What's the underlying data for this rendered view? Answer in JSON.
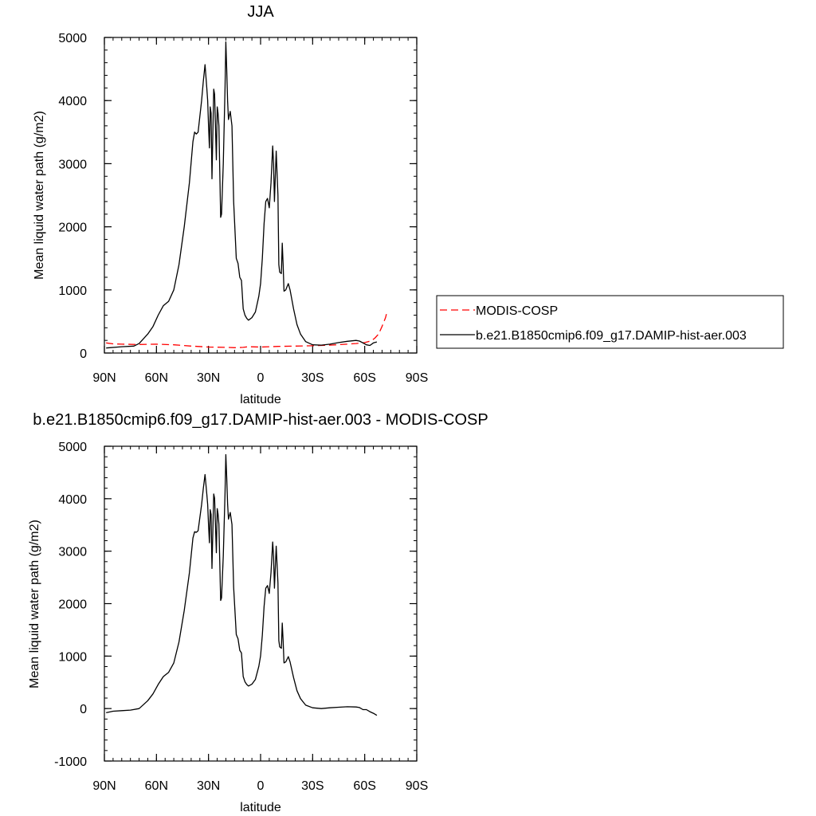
{
  "chart_data": [
    {
      "type": "line",
      "title": "JJA",
      "xlabel": "latitude",
      "ylabel": "Mean liquid water path (g/m2)",
      "xlim": [
        90,
        -90
      ],
      "ylim": [
        0,
        5000
      ],
      "xticks": [
        90,
        60,
        30,
        0,
        -30,
        -60,
        -90
      ],
      "xticklabels": [
        "90N",
        "60N",
        "30N",
        "0",
        "30S",
        "60S",
        "90S"
      ],
      "yticks": [
        0,
        1000,
        2000,
        3000,
        4000,
        5000
      ],
      "yticklabels": [
        "0",
        "1000",
        "2000",
        "3000",
        "4000",
        "5000"
      ],
      "grid": false,
      "legend_position": "right",
      "series": [
        {
          "name": "MODIS-COSP",
          "color": "#ff0000",
          "dash": "dashed",
          "points": [
            [
              89,
              160
            ],
            [
              85,
              145
            ],
            [
              80,
              140
            ],
            [
              70,
              135
            ],
            [
              60,
              140
            ],
            [
              50,
              130
            ],
            [
              40,
              110
            ],
            [
              30,
              95
            ],
            [
              20,
              90
            ],
            [
              15,
              85
            ],
            [
              10,
              90
            ],
            [
              7,
              100
            ],
            [
              0,
              95
            ],
            [
              -10,
              105
            ],
            [
              -20,
              110
            ],
            [
              -30,
              115
            ],
            [
              -40,
              125
            ],
            [
              -50,
              140
            ],
            [
              -55,
              150
            ],
            [
              -60,
              165
            ],
            [
              -62,
              180
            ],
            [
              -64,
              195
            ],
            [
              -66,
              240
            ],
            [
              -68,
              300
            ],
            [
              -70,
              420
            ],
            [
              -72,
              560
            ],
            [
              -73,
              670
            ]
          ]
        },
        {
          "name": "b.e21.B1850cmip6.f09_g17.DAMIP-hist-aer.003",
          "color": "#000000",
          "dash": "solid",
          "points": [
            [
              89,
              80
            ],
            [
              80,
              100
            ],
            [
              73,
              110
            ],
            [
              70,
              150
            ],
            [
              65,
              300
            ],
            [
              62,
              420
            ],
            [
              59,
              600
            ],
            [
              56,
              750
            ],
            [
              53,
              820
            ],
            [
              50,
              1000
            ],
            [
              47,
              1400
            ],
            [
              44,
              2000
            ],
            [
              41,
              2700
            ],
            [
              39,
              3350
            ],
            [
              38,
              3500
            ],
            [
              37,
              3470
            ],
            [
              36,
              3500
            ],
            [
              34,
              4000
            ],
            [
              33,
              4300
            ],
            [
              32,
              4570
            ],
            [
              31,
              4200
            ],
            [
              30.5,
              4000
            ],
            [
              30,
              3600
            ],
            [
              29.5,
              3250
            ],
            [
              29,
              3900
            ],
            [
              28.5,
              3800
            ],
            [
              28,
              2760
            ],
            [
              27,
              4180
            ],
            [
              26.5,
              4100
            ],
            [
              25.5,
              3060
            ],
            [
              25,
              3900
            ],
            [
              24.5,
              3800
            ],
            [
              24,
              3600
            ],
            [
              23,
              2150
            ],
            [
              22.5,
              2200
            ],
            [
              21.5,
              3000
            ],
            [
              20.5,
              4200
            ],
            [
              20,
              4930
            ],
            [
              19.5,
              4500
            ],
            [
              19,
              4000
            ],
            [
              18.5,
              3700
            ],
            [
              17.5,
              3830
            ],
            [
              16.5,
              3600
            ],
            [
              15.5,
              2400
            ],
            [
              14,
              1500
            ],
            [
              13,
              1420
            ],
            [
              12,
              1200
            ],
            [
              11,
              1150
            ],
            [
              10,
              700
            ],
            [
              9,
              600
            ],
            [
              8,
              550
            ],
            [
              7,
              520
            ],
            [
              5,
              560
            ],
            [
              3,
              650
            ],
            [
              1,
              900
            ],
            [
              0,
              1100
            ],
            [
              -1,
              1500
            ],
            [
              -2,
              2050
            ],
            [
              -3,
              2400
            ],
            [
              -4,
              2450
            ],
            [
              -5,
              2300
            ],
            [
              -6,
              2700
            ],
            [
              -7,
              3280
            ],
            [
              -7.5,
              3000
            ],
            [
              -8,
              2400
            ],
            [
              -9,
              3200
            ],
            [
              -10,
              2500
            ],
            [
              -10.5,
              1400
            ],
            [
              -11,
              1280
            ],
            [
              -12,
              1260
            ],
            [
              -12.5,
              1740
            ],
            [
              -13,
              1400
            ],
            [
              -13.5,
              980
            ],
            [
              -14.5,
              1000
            ],
            [
              -16,
              1100
            ],
            [
              -17,
              1000
            ],
            [
              -19,
              700
            ],
            [
              -21,
              450
            ],
            [
              -23,
              300
            ],
            [
              -26,
              180
            ],
            [
              -30,
              130
            ],
            [
              -35,
              125
            ],
            [
              -40,
              140
            ],
            [
              -45,
              165
            ],
            [
              -50,
              185
            ],
            [
              -55,
              200
            ],
            [
              -57,
              190
            ],
            [
              -59,
              160
            ],
            [
              -61,
              130
            ],
            [
              -63,
              120
            ],
            [
              -65,
              160
            ],
            [
              -67,
              175
            ]
          ]
        }
      ]
    },
    {
      "type": "line",
      "title": "b.e21.B1850cmip6.f09_g17.DAMIP-hist-aer.003 - MODIS-COSP",
      "xlabel": "latitude",
      "ylabel": "Mean liquid water path (g/m2)",
      "xlim": [
        90,
        -90
      ],
      "ylim": [
        -1000,
        5000
      ],
      "xticks": [
        90,
        60,
        30,
        0,
        -30,
        -60,
        -90
      ],
      "xticklabels": [
        "90N",
        "60N",
        "30N",
        "0",
        "30S",
        "60S",
        "90S"
      ],
      "yticks": [
        -1000,
        0,
        1000,
        2000,
        3000,
        4000,
        5000
      ],
      "yticklabels": [
        "-1000",
        "0",
        "1000",
        "2000",
        "3000",
        "4000",
        "5000"
      ],
      "grid": false,
      "series": [
        {
          "name": "",
          "color": "#000000",
          "dash": "solid",
          "points": [
            [
              89,
              -80
            ],
            [
              85,
              -50
            ],
            [
              80,
              -40
            ],
            [
              75,
              -30
            ],
            [
              70,
              0
            ],
            [
              65,
              150
            ],
            [
              62,
              280
            ],
            [
              59,
              460
            ],
            [
              56,
              610
            ],
            [
              53,
              690
            ],
            [
              50,
              870
            ],
            [
              47,
              1270
            ],
            [
              44,
              1870
            ],
            [
              41,
              2590
            ],
            [
              39,
              3250
            ],
            [
              38,
              3370
            ],
            [
              37,
              3360
            ],
            [
              36,
              3390
            ],
            [
              34,
              3890
            ],
            [
              33,
              4190
            ],
            [
              32,
              4460
            ],
            [
              31,
              4090
            ],
            [
              30.5,
              3890
            ],
            [
              30,
              3500
            ],
            [
              29.5,
              3160
            ],
            [
              29,
              3790
            ],
            [
              28.5,
              3700
            ],
            [
              28,
              2670
            ],
            [
              27,
              4090
            ],
            [
              26.5,
              4010
            ],
            [
              25.5,
              2970
            ],
            [
              25,
              3810
            ],
            [
              24.5,
              3710
            ],
            [
              24,
              3510
            ],
            [
              23,
              2060
            ],
            [
              22.5,
              2110
            ],
            [
              21.5,
              2910
            ],
            [
              20.5,
              4110
            ],
            [
              20,
              4840
            ],
            [
              19.5,
              4410
            ],
            [
              19,
              3910
            ],
            [
              18.5,
              3610
            ],
            [
              17.5,
              3740
            ],
            [
              16.5,
              3510
            ],
            [
              15.5,
              2310
            ],
            [
              14,
              1410
            ],
            [
              13,
              1330
            ],
            [
              12,
              1110
            ],
            [
              11,
              1060
            ],
            [
              10,
              610
            ],
            [
              9,
              510
            ],
            [
              8,
              460
            ],
            [
              7,
              430
            ],
            [
              5,
              465
            ],
            [
              3,
              555
            ],
            [
              1,
              805
            ],
            [
              0,
              1005
            ],
            [
              -1,
              1400
            ],
            [
              -2,
              1945
            ],
            [
              -3,
              2295
            ],
            [
              -4,
              2345
            ],
            [
              -5,
              2195
            ],
            [
              -6,
              2595
            ],
            [
              -7,
              3175
            ],
            [
              -7.5,
              2895
            ],
            [
              -8,
              2295
            ],
            [
              -9,
              3095
            ],
            [
              -10,
              2395
            ],
            [
              -10.5,
              1295
            ],
            [
              -11,
              1175
            ],
            [
              -12,
              1150
            ],
            [
              -12.5,
              1630
            ],
            [
              -13,
              1290
            ],
            [
              -13.5,
              870
            ],
            [
              -14.5,
              890
            ],
            [
              -16,
              990
            ],
            [
              -17,
              890
            ],
            [
              -19,
              590
            ],
            [
              -21,
              340
            ],
            [
              -23,
              190
            ],
            [
              -26,
              65
            ],
            [
              -30,
              15
            ],
            [
              -35,
              0
            ],
            [
              -40,
              15
            ],
            [
              -45,
              25
            ],
            [
              -50,
              35
            ],
            [
              -55,
              30
            ],
            [
              -57,
              20
            ],
            [
              -59,
              -20
            ],
            [
              -61,
              -20
            ],
            [
              -63,
              -60
            ],
            [
              -65,
              -90
            ],
            [
              -67,
              -130
            ]
          ]
        }
      ]
    }
  ]
}
